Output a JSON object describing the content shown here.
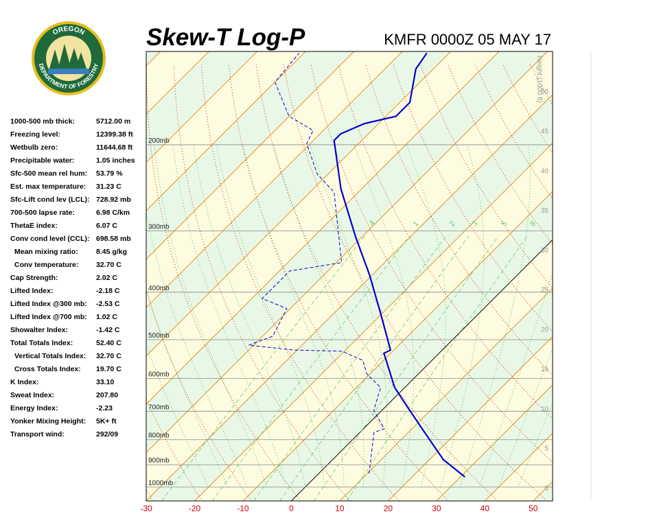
{
  "logo": {
    "top": "OREGON",
    "bottom": "DEPARTMENT OF FORESTRY"
  },
  "stats": [
    [
      "1000-500 mb thick:",
      "5712.00 m"
    ],
    [
      "Freezing level:",
      "12399.38 ft"
    ],
    [
      "Wetbulb zero:",
      "11644.68 ft"
    ],
    [
      "Precipitable water:",
      "1.05 inches"
    ],
    [
      "Sfc-500 mean rel hum:",
      "53.79 %"
    ],
    [
      "Est. max temperature:",
      "31.23 C"
    ],
    [
      "Sfc-Lift cond lev (LCL):",
      "728.92 mb"
    ],
    [
      "700-500 lapse rate:",
      "6.98 C/km"
    ],
    [
      "ThetaE index:",
      "6.07 C"
    ],
    [
      "Conv cond level (CCL):",
      "698.58 mb"
    ],
    [
      "Mean mixing ratio:",
      "8.45 g/kg"
    ],
    [
      "Conv temperature:",
      "32.70 C"
    ],
    [
      "Cap Strength:",
      "2.02 C"
    ],
    [
      "Lifted Index:",
      "-2.18 C"
    ],
    [
      "Lifted Index @300 mb:",
      "-2.53 C"
    ],
    [
      "Lifted Index @700 mb:",
      "1.02 C"
    ],
    [
      "Showalter Index:",
      "-1.42 C"
    ],
    [
      "Total Totals Index:",
      "52.40 C"
    ],
    [
      "Vertical Totals Index:",
      "32.70 C"
    ],
    [
      "Cross Totals Index:",
      "19.70 C"
    ],
    [
      "K Index:",
      "33.10"
    ],
    [
      "Sweat Index:",
      "207.80"
    ],
    [
      "Energy Index:",
      "-2.23"
    ],
    [
      "Yonker Mixing Height:",
      "5K+ ft"
    ],
    [
      "Transport wind:",
      "292/09"
    ]
  ],
  "chart_data": {
    "type": "skew-t",
    "title": "Skew-T Log-P",
    "subtitle": "KMFR 0000Z 05 MAY 17",
    "xlim": [
      -30,
      54
    ],
    "xticks": [
      -30,
      -20,
      -10,
      0,
      10,
      20,
      30,
      40,
      50
    ],
    "ylim": [
      1067,
      129
    ],
    "log_scale": true,
    "pressure_levels": [
      {
        "value": 200,
        "label": "200mb"
      },
      {
        "value": 300,
        "label": "300mb"
      },
      {
        "value": 400,
        "label": "400mb"
      },
      {
        "value": 500,
        "label": "500mb"
      },
      {
        "value": 600,
        "label": "600mb"
      },
      {
        "value": 700,
        "label": "700mb"
      },
      {
        "value": 800,
        "label": "800mb"
      },
      {
        "value": 900,
        "label": "900mb"
      },
      {
        "value": 1000,
        "label": "1000mb"
      }
    ],
    "y2_label": "Height (1000 ft)",
    "y2lim": [
      -1.7,
      55
    ],
    "y2ticks": [
      0,
      5,
      10,
      15,
      20,
      25,
      30,
      35,
      40,
      45,
      50
    ],
    "mixing_ratio_labels": [
      {
        "value": 0.4,
        "label": ".4"
      },
      1,
      2,
      3,
      5,
      8
    ],
    "temperature": {
      "color": "#0000cc",
      "pressure": [
        953,
        879,
        760,
        690,
        626,
        533,
        525,
        439,
        368,
        308,
        246,
        196,
        190,
        181,
        175,
        164,
        140,
        130
      ],
      "values": [
        30.9,
        22.9,
        12.1,
        5.0,
        -2.1,
        -11.4,
        -10.7,
        -20.7,
        -30.7,
        -41.4,
        -54.3,
        -65.7,
        -65.7,
        -62.9,
        -57.9,
        -57.9,
        -63.6,
        -64.6
      ]
    },
    "dewpoint": {
      "color": "#0000cc",
      "pressure": [
        938,
        773,
        760,
        697,
        626,
        587,
        551,
        528,
        525,
        513,
        492,
        432,
        412,
        362,
        348,
        250,
        230,
        199,
        187,
        175,
        149,
        130
      ],
      "values": [
        10.4,
        2.9,
        4.3,
        -1.7,
        -5.0,
        -10.7,
        -14.3,
        -20.4,
        -30.7,
        -41.0,
        -37.9,
        -40.7,
        -47.9,
        -47.9,
        -38.9,
        -55.0,
        -62.1,
        -70.7,
        -72.1,
        -80.0,
        -90.0,
        -91.0
      ]
    }
  }
}
